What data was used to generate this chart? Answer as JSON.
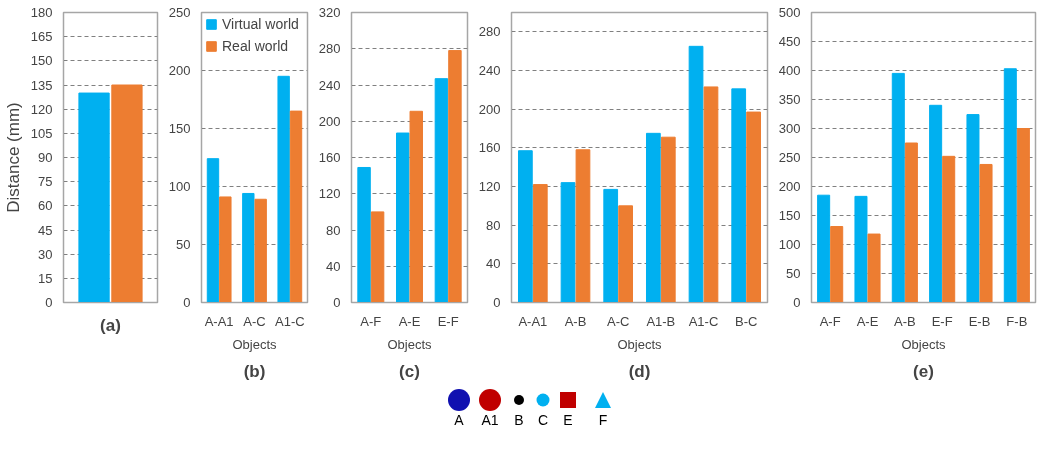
{
  "chart_data": [
    {
      "type": "bar",
      "title": "(a)",
      "ylabel": "Distance (mm)",
      "categories": [
        null
      ],
      "ylim": [
        0,
        180
      ],
      "yticks": [
        0,
        15,
        30,
        45,
        60,
        75,
        90,
        105,
        120,
        135,
        150,
        165,
        180
      ],
      "grid": "y",
      "tick_labels": "y",
      "series": [
        {
          "color": "#00b0f0",
          "values": [
            130
          ]
        },
        {
          "color": "#ed7d31",
          "values": [
            135
          ]
        }
      ]
    },
    {
      "type": "bar",
      "title": "(b)",
      "xlabel": "Objects",
      "categories": [
        "A-A1",
        "A-C",
        "A1-C"
      ],
      "ylim": [
        0,
        250
      ],
      "yticks": [
        0,
        50,
        100,
        150,
        200,
        250
      ],
      "grid": "y",
      "legend": "top left",
      "series": [
        {
          "name": "Virtual world",
          "color": "#00b0f0",
          "values": [
            124,
            94,
            195
          ]
        },
        {
          "name": "Real world",
          "color": "#ed7d31",
          "values": [
            91,
            89,
            165
          ]
        }
      ]
    },
    {
      "type": "bar",
      "title": "(c)",
      "xlabel": "Objects",
      "categories": [
        "A-F",
        "A-E",
        "E-F"
      ],
      "ylim": [
        0,
        320
      ],
      "yticks": [
        0,
        40,
        80,
        120,
        160,
        200,
        240,
        280,
        320
      ],
      "grid": "y",
      "series": [
        {
          "color": "#00b0f0",
          "values": [
            149,
            187,
            247
          ]
        },
        {
          "color": "#ed7d31",
          "values": [
            100,
            211,
            278
          ]
        }
      ]
    },
    {
      "type": "bar",
      "title": "(d)",
      "xlabel": "Objects",
      "categories": [
        "A-A1",
        "A-B",
        "A-C",
        "A1-B",
        "A1-C",
        "B-C"
      ],
      "ylim": [
        0,
        300
      ],
      "yticks": [
        0,
        40,
        80,
        120,
        160,
        200,
        240,
        280
      ],
      "grid": "y",
      "series": [
        {
          "color": "#00b0f0",
          "values": [
            157,
            124,
            117,
            175,
            265,
            221
          ]
        },
        {
          "color": "#ed7d31",
          "values": [
            122,
            158,
            100,
            171,
            223,
            197
          ]
        }
      ]
    },
    {
      "type": "bar",
      "title": "(e)",
      "xlabel": "Objects",
      "categories": [
        "A-F",
        "A-E",
        "A-B",
        "E-F",
        "E-B",
        "F-B"
      ],
      "ylim": [
        0,
        500
      ],
      "yticks": [
        0,
        50,
        100,
        150,
        200,
        250,
        300,
        350,
        400,
        450,
        500
      ],
      "grid": "y",
      "series": [
        {
          "color": "#00b0f0",
          "values": [
            185,
            183,
            395,
            340,
            324,
            403
          ]
        },
        {
          "color": "#ed7d31",
          "values": [
            131,
            118,
            275,
            252,
            238,
            300
          ]
        }
      ]
    },
    {
      "type": "other",
      "annotations": [
        "A",
        "A1",
        "B",
        "C",
        "E",
        "F"
      ]
    }
  ]
}
